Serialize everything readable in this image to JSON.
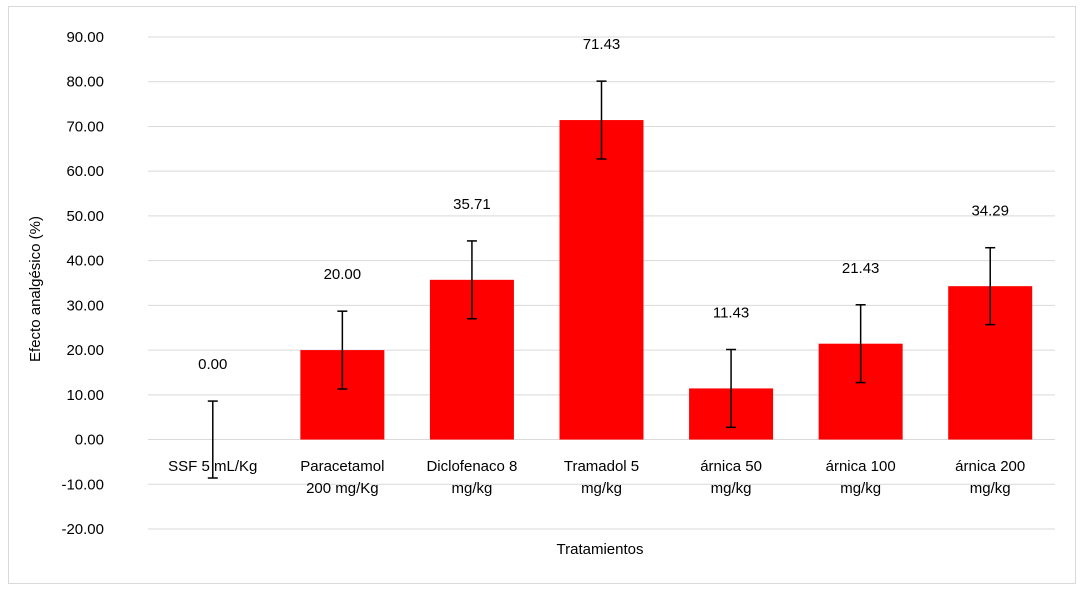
{
  "chart_data": {
    "type": "bar",
    "categories": [
      [
        "SSF 5 mL/Kg"
      ],
      [
        "Paracetamol",
        "200 mg/Kg"
      ],
      [
        "Diclofenaco 8",
        "mg/kg"
      ],
      [
        "Tramadol 5",
        "mg/kg"
      ],
      [
        "árnica 50",
        "mg/kg"
      ],
      [
        "árnica 100",
        "mg/kg"
      ],
      [
        "árnica  200",
        "mg/kg"
      ]
    ],
    "values": [
      0.0,
      20.0,
      35.71,
      71.43,
      11.43,
      21.43,
      34.29
    ],
    "data_labels": [
      "0.00",
      "20.00",
      "35.71",
      "71.43",
      "11.43",
      "21.43",
      "34.29"
    ],
    "error": [
      8.6,
      8.7,
      8.7,
      8.7,
      8.7,
      8.7,
      8.6
    ],
    "bar_color": "#ff0000",
    "xlabel": "Tratamientos",
    "ylabel": "Efecto analgésico (%)",
    "ylim": [
      -20,
      90
    ],
    "yticks": [
      "-20.00",
      "-10.00",
      "0.00",
      "10.00",
      "20.00",
      "30.00",
      "40.00",
      "50.00",
      "60.00",
      "70.00",
      "80.00",
      "90.00"
    ],
    "grid": true,
    "legend": "none"
  }
}
